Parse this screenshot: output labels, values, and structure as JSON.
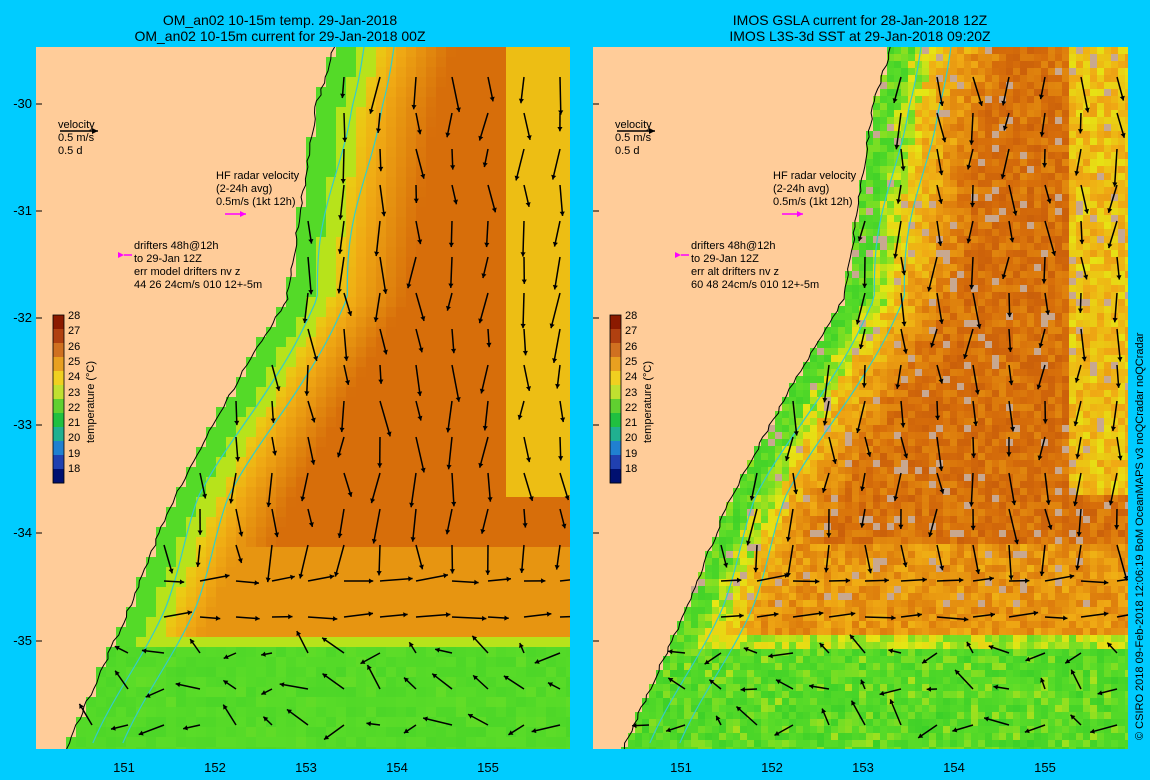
{
  "left": {
    "title1": "OM_an02 10-15m temp. 29-Jan-2018",
    "title2": "OM_an02 10-15m current for 29-Jan-2018 00Z",
    "drifters": [
      "drifters 48h@12h",
      "to 29-Jan 12Z",
      "err model drifters nv z",
      "44 26 24cm/s 010 12+-5m"
    ]
  },
  "right": {
    "title1": "IMOS GSLA current for 28-Jan-2018 12Z",
    "title2": "IMOS L3S-3d SST at 29-Jan-2018 09:20Z",
    "drifters": [
      "drifters 48h@12h",
      "to 29-Jan 12Z",
      "err alt drifters nv z",
      "60 48 24cm/s 010 12+-5m"
    ]
  },
  "velocity": [
    "velocity",
    "0.5 m/s",
    "0.5 d"
  ],
  "hf_radar": [
    "HF radar velocity",
    "(2-24h avg)",
    "0.5m/s (1kt 12h)"
  ],
  "y_ticks": [
    "-30",
    "-31",
    "-32",
    "-33",
    "-34",
    "-35"
  ],
  "x_ticks": [
    "151",
    "152",
    "153",
    "154",
    "155"
  ],
  "colorbar": {
    "ticks": [
      "28",
      "27",
      "26",
      "25",
      "24",
      "23",
      "22",
      "21",
      "20",
      "19",
      "18"
    ],
    "label": "temperature (°C)"
  },
  "credit": "© CSIRO 2018  09-Feb-2018 12:06:19 BoM OceanMAPS v3 noQCradar noQCradar",
  "colors": {
    "background": "#00ccff",
    "land": "#ffcc99",
    "warm": "#c8640a",
    "green": "#33cc33",
    "drifter": "#ff00ff",
    "contour": "#33cccc"
  }
}
